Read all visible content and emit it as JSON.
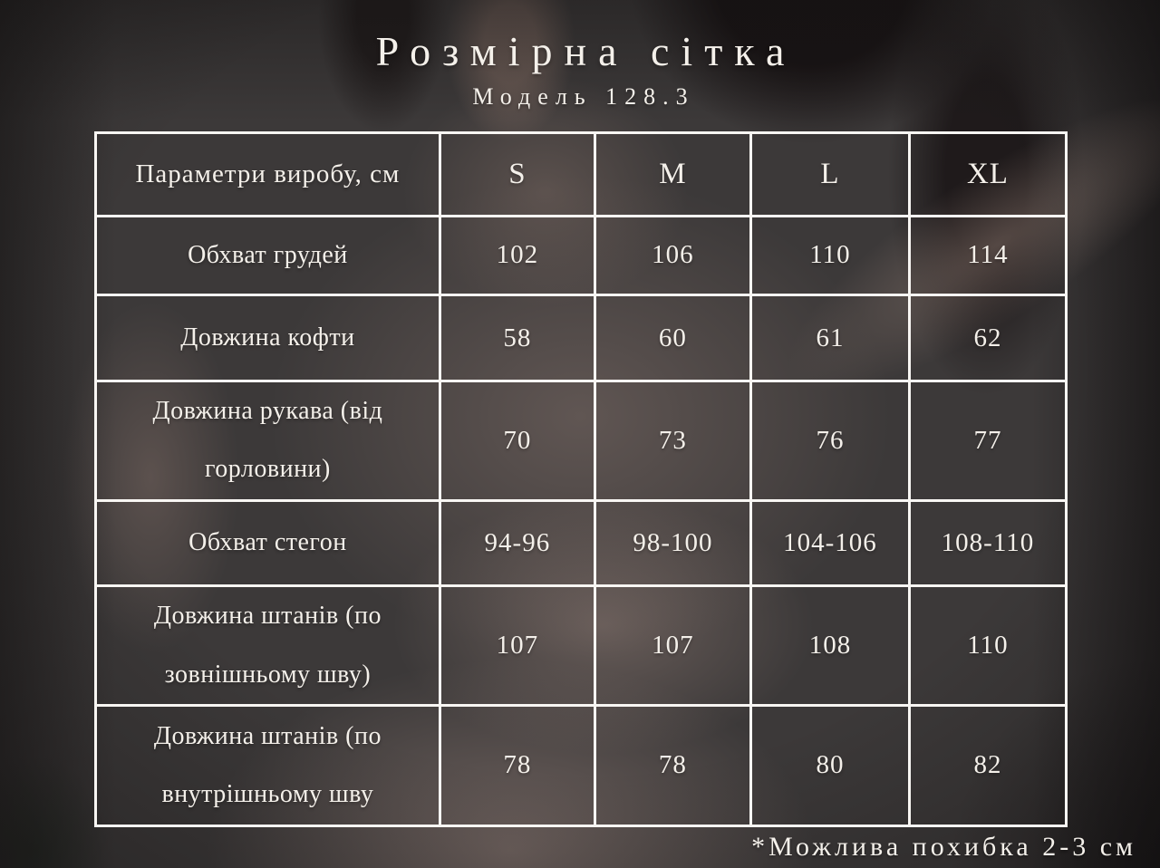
{
  "header": {
    "title": "Розмірна сітка",
    "subtitle": "Модель 128.3"
  },
  "table": {
    "columns": [
      "Параметри виробу, см",
      "S",
      "M",
      "L",
      "XL"
    ],
    "rows": [
      {
        "label": "Обхват грудей",
        "values": [
          "102",
          "106",
          "110",
          "114"
        ]
      },
      {
        "label": "Довжина кофти",
        "values": [
          "58",
          "60",
          "61",
          "62"
        ]
      },
      {
        "label": "Довжина рукава (від\nгорловини)",
        "values": [
          "70",
          "73",
          "76",
          "77"
        ]
      },
      {
        "label": "Обхват стегон",
        "values": [
          "94-96",
          "98-100",
          "104-106",
          "108-110"
        ]
      },
      {
        "label": "Довжина штанів (по\nзовнішньому шву)",
        "values": [
          "107",
          "107",
          "108",
          "110"
        ]
      },
      {
        "label": "Довжина штанів (по\nвнутрішньому шву",
        "values": [
          "78",
          "78",
          "80",
          "82"
        ]
      }
    ]
  },
  "footnote": "*Можлива похибка 2-3 см",
  "colors": {
    "text": "#f4f0ea",
    "table_border": "#f8f6f3",
    "background_base": "#3c3939"
  }
}
